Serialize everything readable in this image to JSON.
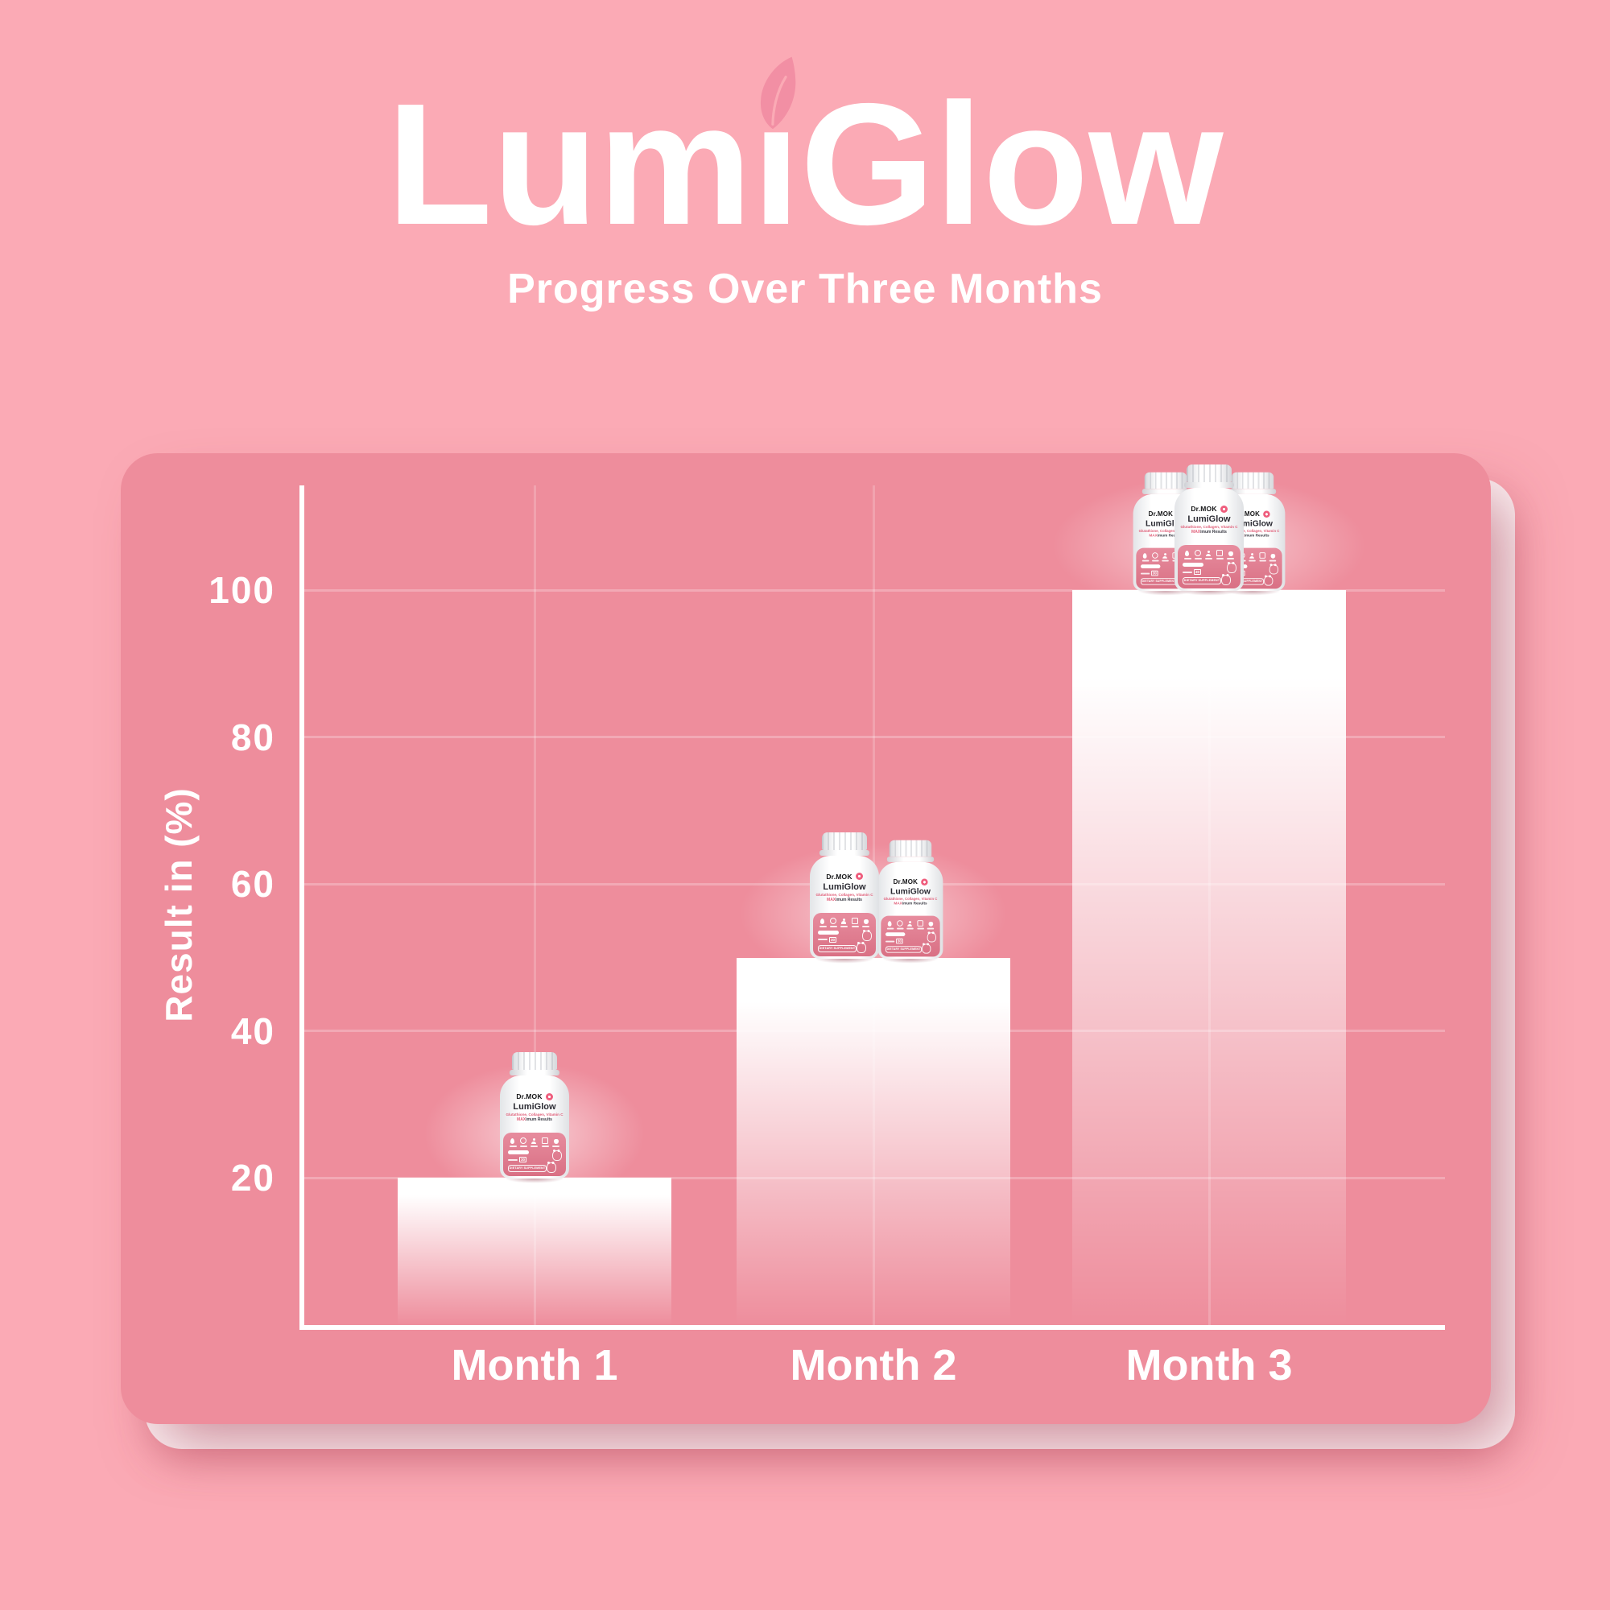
{
  "colors": {
    "background": "#FBAAB5",
    "panel": "#EE8D9C",
    "card_back": "#FCF1F3",
    "bar_top": "#FFFFFF",
    "leaf": "#F28FA4",
    "text": "#FFFFFF",
    "bottle_band": "#DE7589",
    "bottle_badge": "#EF5D7D",
    "bottle_accent_text": "#E0607A",
    "bottle_dark_text": "#2B2B33"
  },
  "header": {
    "title": "LumiGlow",
    "title_pre": "Lum",
    "title_i": "ı",
    "title_post": "Glow",
    "subtitle": "Progress Over Three Months",
    "leaf_icon": "leaf-icon"
  },
  "chart_data": {
    "type": "bar",
    "title": "Progress Over Three Months",
    "categories": [
      "Month 1",
      "Month 2",
      "Month 3"
    ],
    "values": [
      20,
      50,
      100
    ],
    "xlabel": "",
    "ylabel": "Result in (%)",
    "yticks": [
      100,
      80,
      60,
      40,
      20
    ],
    "ylim": [
      0,
      115
    ],
    "grid": true,
    "legend": "none",
    "bar_gradient": "white fading to transparent toward baseline",
    "bottles_per_bar": [
      1,
      2,
      3
    ]
  },
  "bottle_label": {
    "brand": "Dr.MOK",
    "product": "LumiGlow",
    "ingredients": "Glutathione, Collagen, Vitamin C",
    "tagline_bold": "MAX",
    "tagline_rest": "imum Results",
    "count": "30",
    "supplement_text": "DIETARY SUPPLEMENT"
  }
}
